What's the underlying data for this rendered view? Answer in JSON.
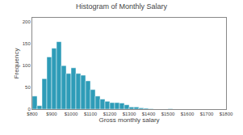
{
  "chart_data": {
    "type": "bar",
    "title": "Histogram of Monthly Salary",
    "xlabel": "Gross monthly salary",
    "ylabel": "Frequency",
    "x": [
      800,
      825,
      850,
      875,
      900,
      925,
      950,
      975,
      1000,
      1025,
      1050,
      1075,
      1100,
      1125,
      1150,
      1175,
      1200,
      1225,
      1250,
      1275,
      1300,
      1325,
      1350,
      1375,
      1400,
      1425,
      1450,
      1475,
      1500
    ],
    "values": [
      30,
      8,
      70,
      120,
      140,
      155,
      100,
      82,
      95,
      82,
      78,
      65,
      45,
      30,
      23,
      18,
      15,
      15,
      14,
      10,
      5,
      5,
      3,
      2,
      1,
      0,
      0,
      0,
      1
    ],
    "color": "#2e9cb8",
    "xlim": [
      800,
      1800
    ],
    "ylim": [
      0,
      210
    ],
    "xticks": [
      {
        "value": 800,
        "label": "$800"
      },
      {
        "value": 900,
        "label": "$900"
      },
      {
        "value": 1000,
        "label": "$1000"
      },
      {
        "value": 1100,
        "label": "$1100"
      },
      {
        "value": 1200,
        "label": "$1200"
      },
      {
        "value": 1300,
        "label": "$1300"
      },
      {
        "value": 1400,
        "label": "$1400"
      },
      {
        "value": 1500,
        "label": "$1500"
      },
      {
        "value": 1600,
        "label": "$1600"
      },
      {
        "value": 1700,
        "label": "$1700"
      },
      {
        "value": 1800,
        "label": "$1800"
      }
    ],
    "yticks": [
      0,
      50,
      100,
      150,
      200
    ],
    "grid": false
  }
}
